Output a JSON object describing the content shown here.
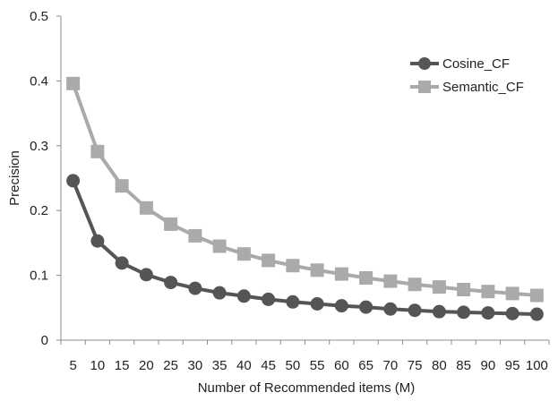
{
  "chart_data": {
    "type": "line",
    "title": "",
    "xlabel": "Number of Recommended items (M)",
    "ylabel": "Precision",
    "categories": [
      "5",
      "10",
      "15",
      "20",
      "25",
      "30",
      "35",
      "40",
      "45",
      "50",
      "55",
      "60",
      "65",
      "70",
      "75",
      "80",
      "85",
      "90",
      "95",
      "100"
    ],
    "ylim": [
      0,
      0.5
    ],
    "yticks": [
      "0",
      "0.1",
      "0.2",
      "0.3",
      "0.4",
      "0.5"
    ],
    "grid": false,
    "legend_position": "top-right",
    "series": [
      {
        "name": "Cosine_CF",
        "marker": "circle",
        "color": "#555555",
        "values": [
          0.246,
          0.153,
          0.119,
          0.101,
          0.089,
          0.08,
          0.073,
          0.068,
          0.063,
          0.059,
          0.056,
          0.053,
          0.051,
          0.048,
          0.046,
          0.044,
          0.043,
          0.042,
          0.041,
          0.04
        ]
      },
      {
        "name": "Semantic_CF",
        "marker": "square",
        "color": "#aaaaaa",
        "values": [
          0.396,
          0.291,
          0.238,
          0.204,
          0.179,
          0.161,
          0.145,
          0.133,
          0.123,
          0.115,
          0.108,
          0.102,
          0.096,
          0.091,
          0.086,
          0.082,
          0.078,
          0.075,
          0.072,
          0.069
        ]
      }
    ]
  }
}
